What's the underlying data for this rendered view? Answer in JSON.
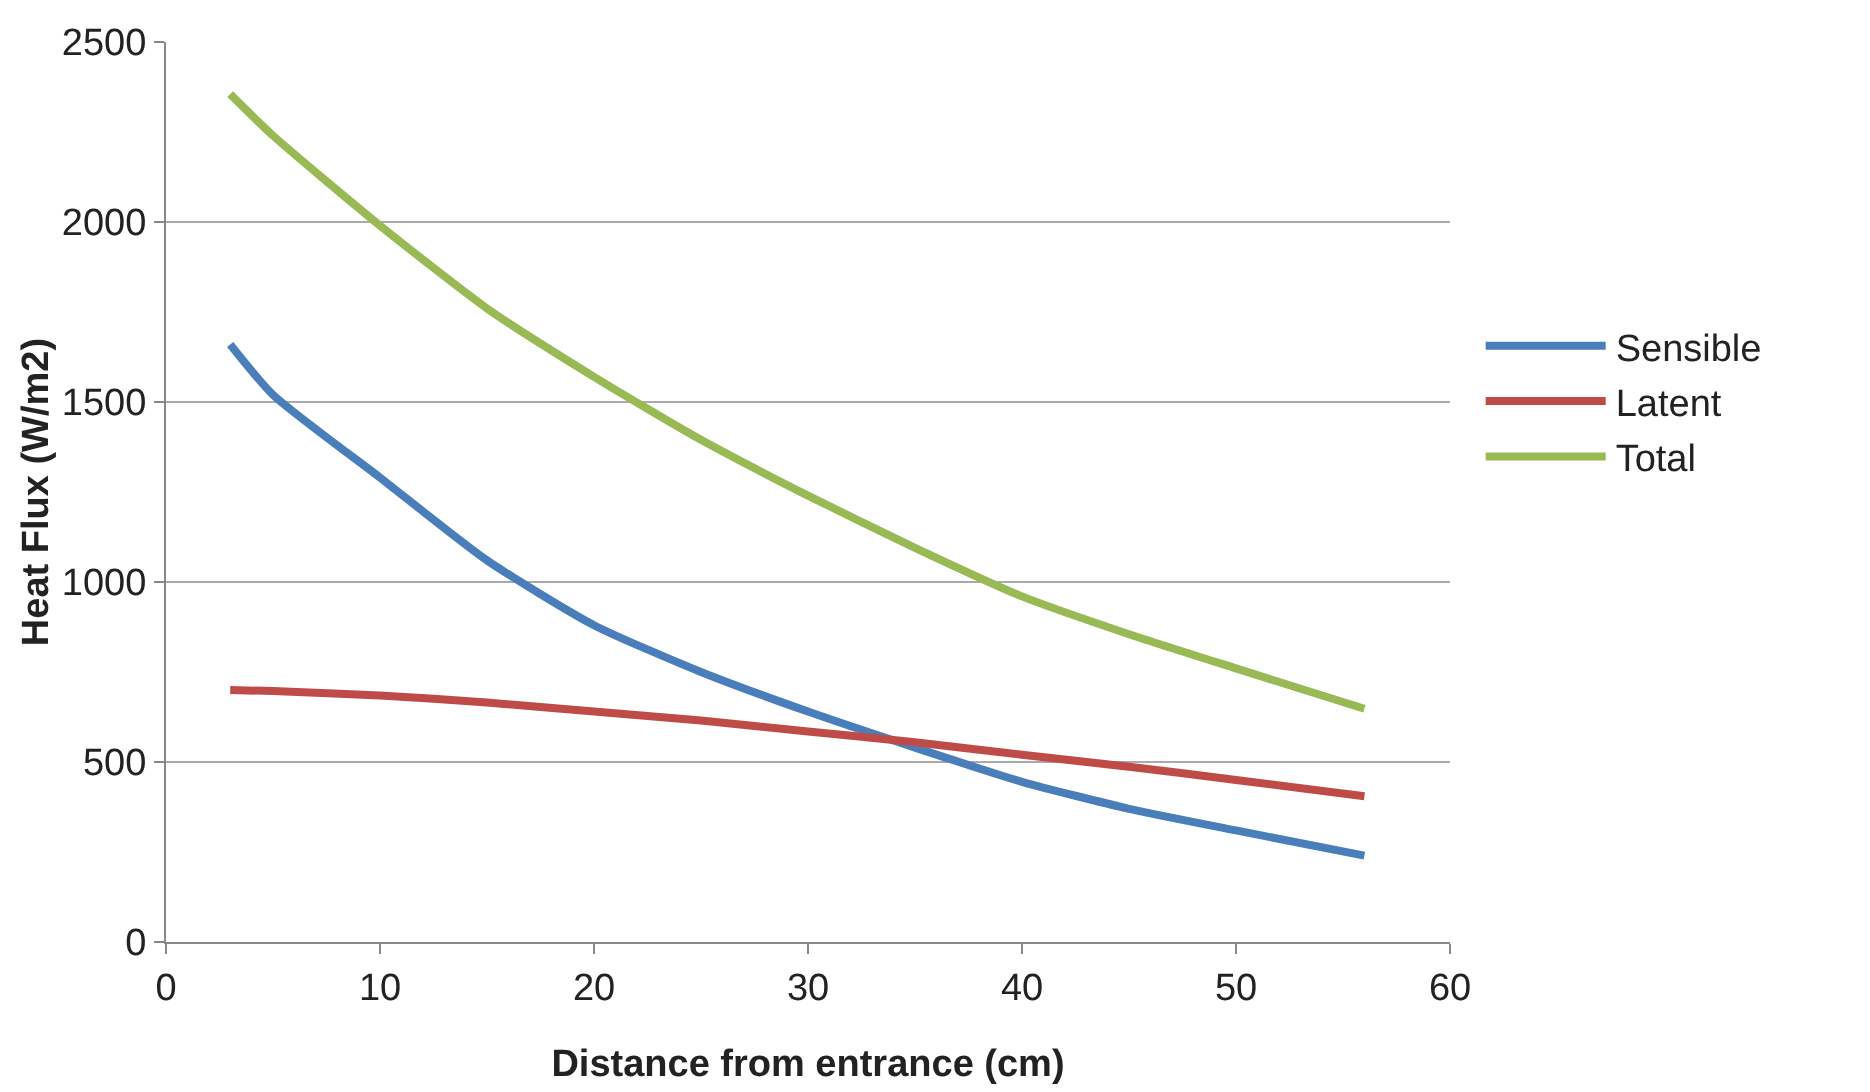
{
  "chart_data": {
    "type": "line",
    "xlabel": "Distance from entrance (cm)",
    "ylabel": "Heat Flux (W/m2)",
    "x": [
      3,
      5,
      10,
      15,
      20,
      25,
      30,
      35,
      40,
      45,
      50,
      56
    ],
    "series": [
      {
        "name": "Sensible",
        "color": "#4a7ebb",
        "values": [
          1660,
          1520,
          1290,
          1060,
          880,
          750,
          640,
          540,
          445,
          370,
          310,
          240
        ]
      },
      {
        "name": "Latent",
        "color": "#be4b48",
        "values": [
          700,
          697,
          685,
          665,
          640,
          615,
          585,
          555,
          520,
          487,
          450,
          405
        ]
      },
      {
        "name": "Total",
        "color": "#98b954",
        "values": [
          2355,
          2240,
          1990,
          1760,
          1570,
          1395,
          1240,
          1095,
          960,
          855,
          760,
          648
        ]
      }
    ],
    "xlim": [
      0,
      60
    ],
    "xticks": [
      0,
      10,
      20,
      30,
      40,
      50,
      60
    ],
    "ylim": [
      0,
      2500
    ],
    "yticks": [
      0,
      500,
      1000,
      1500,
      2000,
      2500
    ],
    "grid": "y",
    "legend": "right",
    "marker": "none",
    "line_style": "solid"
  }
}
